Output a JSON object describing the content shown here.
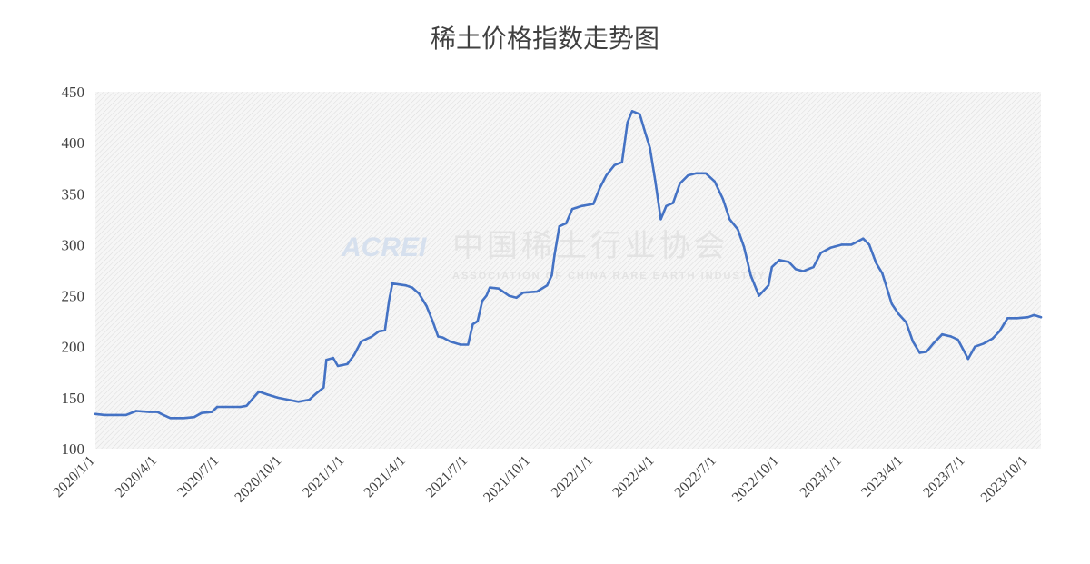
{
  "chart_data": {
    "type": "line",
    "title": "稀土价格指数走势图",
    "xlabel": "",
    "ylabel": "",
    "ylim": [
      100,
      450
    ],
    "yticks": [
      100,
      150,
      200,
      250,
      300,
      350,
      400,
      450
    ],
    "xlim": [
      "2020-01-01",
      "2023-10-20"
    ],
    "xtick_labels": [
      "2020/1/1",
      "2020/4/1",
      "2020/7/1",
      "2020/10/1",
      "2021/1/1",
      "2021/4/1",
      "2021/7/1",
      "2021/10/1",
      "2022/1/1",
      "2022/4/1",
      "2022/7/1",
      "2022/10/1",
      "2023/1/1",
      "2023/4/1",
      "2023/7/1",
      "2023/10/1"
    ],
    "grid": false,
    "legend": "none",
    "series": [
      {
        "color": "#4472c4",
        "points": [
          [
            "2020-01-01",
            134
          ],
          [
            "2020-01-15",
            133
          ],
          [
            "2020-02-01",
            133
          ],
          [
            "2020-02-15",
            133
          ],
          [
            "2020-03-01",
            137
          ],
          [
            "2020-03-20",
            136
          ],
          [
            "2020-04-01",
            136
          ],
          [
            "2020-04-10",
            133
          ],
          [
            "2020-04-20",
            130
          ],
          [
            "2020-05-10",
            130
          ],
          [
            "2020-05-25",
            131
          ],
          [
            "2020-06-05",
            135
          ],
          [
            "2020-06-20",
            136
          ],
          [
            "2020-06-28",
            141
          ],
          [
            "2020-07-10",
            141
          ],
          [
            "2020-08-01",
            141
          ],
          [
            "2020-08-10",
            142
          ],
          [
            "2020-08-20",
            150
          ],
          [
            "2020-08-28",
            156
          ],
          [
            "2020-09-10",
            153
          ],
          [
            "2020-09-25",
            150
          ],
          [
            "2020-10-10",
            148
          ],
          [
            "2020-10-25",
            146
          ],
          [
            "2020-11-10",
            148
          ],
          [
            "2020-11-20",
            154
          ],
          [
            "2020-12-01",
            160
          ],
          [
            "2020-12-05",
            187
          ],
          [
            "2020-12-15",
            189
          ],
          [
            "2020-12-22",
            181
          ],
          [
            "2021-01-05",
            183
          ],
          [
            "2021-01-15",
            192
          ],
          [
            "2021-01-25",
            205
          ],
          [
            "2021-02-10",
            210
          ],
          [
            "2021-02-20",
            215
          ],
          [
            "2021-03-01",
            216
          ],
          [
            "2021-03-07",
            245
          ],
          [
            "2021-03-12",
            262
          ],
          [
            "2021-03-22",
            261
          ],
          [
            "2021-04-01",
            260
          ],
          [
            "2021-04-10",
            258
          ],
          [
            "2021-04-20",
            252
          ],
          [
            "2021-05-01",
            240
          ],
          [
            "2021-05-10",
            225
          ],
          [
            "2021-05-18",
            210
          ],
          [
            "2021-05-25",
            209
          ],
          [
            "2021-06-05",
            205
          ],
          [
            "2021-06-20",
            202
          ],
          [
            "2021-07-01",
            202
          ],
          [
            "2021-07-08",
            222
          ],
          [
            "2021-07-15",
            225
          ],
          [
            "2021-07-22",
            245
          ],
          [
            "2021-07-28",
            250
          ],
          [
            "2021-08-02",
            258
          ],
          [
            "2021-08-15",
            257
          ],
          [
            "2021-08-30",
            250
          ],
          [
            "2021-09-10",
            248
          ],
          [
            "2021-09-20",
            253
          ],
          [
            "2021-10-10",
            254
          ],
          [
            "2021-10-25",
            260
          ],
          [
            "2021-11-01",
            270
          ],
          [
            "2021-11-05",
            290
          ],
          [
            "2021-11-12",
            318
          ],
          [
            "2021-11-22",
            321
          ],
          [
            "2021-12-01",
            335
          ],
          [
            "2021-12-15",
            338
          ],
          [
            "2022-01-01",
            340
          ],
          [
            "2022-01-10",
            355
          ],
          [
            "2022-01-20",
            368
          ],
          [
            "2022-02-01",
            378
          ],
          [
            "2022-02-12",
            381
          ],
          [
            "2022-02-20",
            420
          ],
          [
            "2022-02-27",
            431
          ],
          [
            "2022-03-10",
            428
          ],
          [
            "2022-03-18",
            410
          ],
          [
            "2022-03-25",
            395
          ],
          [
            "2022-04-02",
            362
          ],
          [
            "2022-04-10",
            325
          ],
          [
            "2022-04-18",
            338
          ],
          [
            "2022-04-28",
            341
          ],
          [
            "2022-05-08",
            360
          ],
          [
            "2022-05-20",
            368
          ],
          [
            "2022-06-01",
            370
          ],
          [
            "2022-06-15",
            370
          ],
          [
            "2022-06-28",
            362
          ],
          [
            "2022-07-10",
            345
          ],
          [
            "2022-07-20",
            325
          ],
          [
            "2022-08-01",
            315
          ],
          [
            "2022-08-10",
            298
          ],
          [
            "2022-08-20",
            270
          ],
          [
            "2022-09-01",
            250
          ],
          [
            "2022-09-15",
            260
          ],
          [
            "2022-09-20",
            278
          ],
          [
            "2022-10-01",
            285
          ],
          [
            "2022-10-15",
            283
          ],
          [
            "2022-10-25",
            276
          ],
          [
            "2022-11-05",
            274
          ],
          [
            "2022-11-20",
            278
          ],
          [
            "2022-12-01",
            292
          ],
          [
            "2022-12-15",
            297
          ],
          [
            "2023-01-01",
            300
          ],
          [
            "2023-01-15",
            300
          ],
          [
            "2023-02-01",
            306
          ],
          [
            "2023-02-10",
            300
          ],
          [
            "2023-02-20",
            282
          ],
          [
            "2023-03-01",
            272
          ],
          [
            "2023-03-15",
            242
          ],
          [
            "2023-03-25",
            232
          ],
          [
            "2023-04-05",
            224
          ],
          [
            "2023-04-15",
            205
          ],
          [
            "2023-04-25",
            194
          ],
          [
            "2023-05-05",
            195
          ],
          [
            "2023-05-15",
            203
          ],
          [
            "2023-05-28",
            212
          ],
          [
            "2023-06-10",
            210
          ],
          [
            "2023-06-20",
            207
          ],
          [
            "2023-06-28",
            197
          ],
          [
            "2023-07-05",
            188
          ],
          [
            "2023-07-15",
            200
          ],
          [
            "2023-07-28",
            203
          ],
          [
            "2023-08-10",
            208
          ],
          [
            "2023-08-20",
            215
          ],
          [
            "2023-09-01",
            228
          ],
          [
            "2023-09-15",
            228
          ],
          [
            "2023-10-01",
            229
          ],
          [
            "2023-10-10",
            231
          ],
          [
            "2023-10-20",
            229
          ]
        ]
      }
    ]
  },
  "watermark": {
    "logo_text": "ACREI",
    "name_cn": "中国稀土行业协会",
    "name_en": "ASSOCIATION OF CHINA RARE EARTH INDUSTRY"
  }
}
